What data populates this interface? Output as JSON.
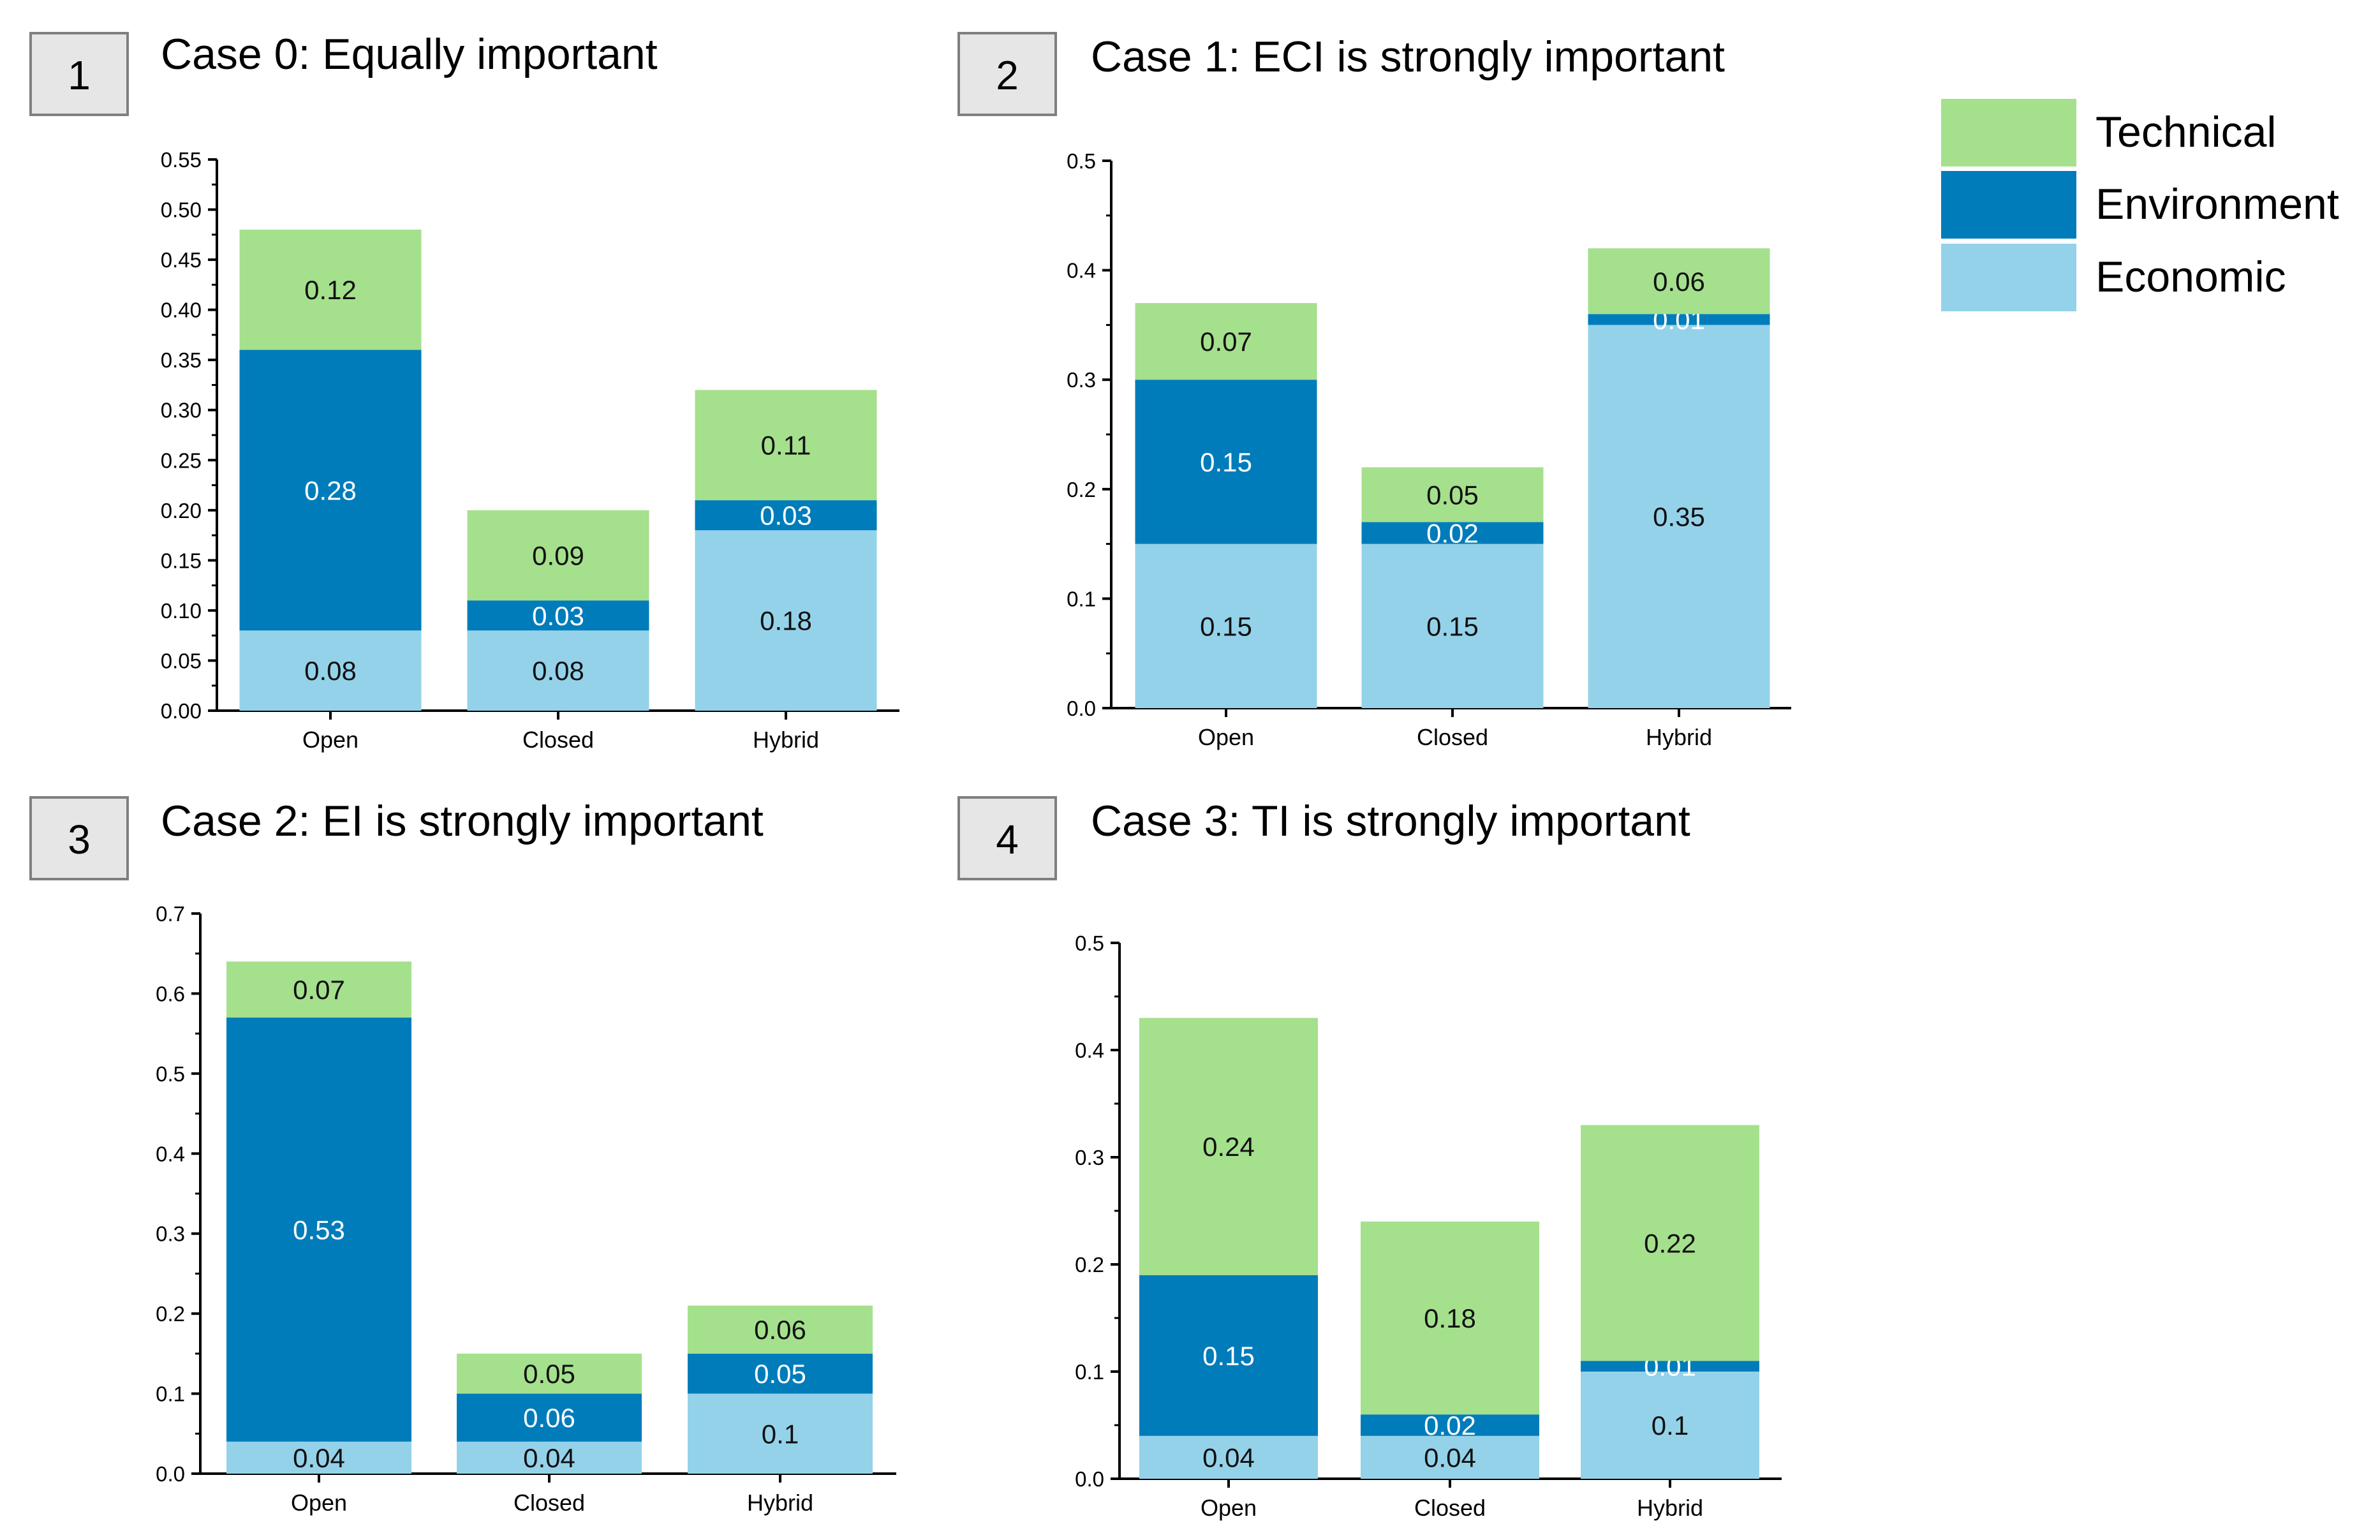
{
  "colors": {
    "technical": "#A5E08D",
    "environment": "#007CBA",
    "economic": "#94D2EA",
    "axis": "#000000",
    "label_dark": "#111111",
    "label_light": "#ffffff",
    "box_fill": "#E6E6E6",
    "box_stroke": "#7F7F7F"
  },
  "legend": {
    "items": [
      {
        "key": "technical",
        "label": "Technical"
      },
      {
        "key": "environment",
        "label": "Environment"
      },
      {
        "key": "economic",
        "label": "Economic"
      }
    ]
  },
  "chart_data": [
    {
      "panel_number": "1",
      "title": "Case 0: Equally important",
      "type": "bar",
      "stacked": true,
      "categories": [
        "Open",
        "Closed",
        "Hybrid"
      ],
      "series": [
        {
          "name": "Economic",
          "key": "economic",
          "values": [
            0.08,
            0.08,
            0.18
          ],
          "labels": [
            "0.08",
            "0.08",
            "0.18"
          ]
        },
        {
          "name": "Environment",
          "key": "environment",
          "values": [
            0.28,
            0.03,
            0.03
          ],
          "labels": [
            "0.28",
            "0.03",
            "0.03"
          ]
        },
        {
          "name": "Technical",
          "key": "technical",
          "values": [
            0.12,
            0.09,
            0.11
          ],
          "labels": [
            "0.12",
            "0.09",
            "0.11"
          ]
        }
      ],
      "ylim": [
        0,
        0.55
      ],
      "yticks": [
        "0.00",
        "0.05",
        "0.10",
        "0.15",
        "0.20",
        "0.25",
        "0.30",
        "0.35",
        "0.40",
        "0.45",
        "0.50",
        "0.55"
      ],
      "xlabel": "",
      "ylabel": ""
    },
    {
      "panel_number": "2",
      "title": "Case 1: ECI is strongly important",
      "type": "bar",
      "stacked": true,
      "categories": [
        "Open",
        "Closed",
        "Hybrid"
      ],
      "series": [
        {
          "name": "Economic",
          "key": "economic",
          "values": [
            0.15,
            0.15,
            0.35
          ],
          "labels": [
            "0.15",
            "0.15",
            "0.35"
          ]
        },
        {
          "name": "Environment",
          "key": "environment",
          "values": [
            0.15,
            0.02,
            0.01
          ],
          "labels": [
            "0.15",
            "0.02",
            "0.01"
          ]
        },
        {
          "name": "Technical",
          "key": "technical",
          "values": [
            0.07,
            0.05,
            0.06
          ],
          "labels": [
            "0.07",
            "0.05",
            "0.06"
          ]
        }
      ],
      "ylim": [
        0,
        0.5
      ],
      "yticks": [
        "0.0",
        "0.1",
        "0.2",
        "0.3",
        "0.4",
        "0.5"
      ],
      "xlabel": "",
      "ylabel": ""
    },
    {
      "panel_number": "3",
      "title": "Case 2: EI is strongly important",
      "type": "bar",
      "stacked": true,
      "categories": [
        "Open",
        "Closed",
        "Hybrid"
      ],
      "series": [
        {
          "name": "Economic",
          "key": "economic",
          "values": [
            0.04,
            0.04,
            0.1
          ],
          "labels": [
            "0.04",
            "0.04",
            "0.1"
          ]
        },
        {
          "name": "Environment",
          "key": "environment",
          "values": [
            0.53,
            0.06,
            0.05
          ],
          "labels": [
            "0.53",
            "0.06",
            "0.05"
          ]
        },
        {
          "name": "Technical",
          "key": "technical",
          "values": [
            0.07,
            0.05,
            0.06
          ],
          "labels": [
            "0.07",
            "0.05",
            "0.06"
          ]
        }
      ],
      "ylim": [
        0,
        0.7
      ],
      "yticks": [
        "0.0",
        "0.1",
        "0.2",
        "0.3",
        "0.4",
        "0.5",
        "0.6",
        "0.7"
      ],
      "xlabel": "",
      "ylabel": ""
    },
    {
      "panel_number": "4",
      "title": "Case 3: TI is strongly important",
      "type": "bar",
      "stacked": true,
      "categories": [
        "Open",
        "Closed",
        "Hybrid"
      ],
      "series": [
        {
          "name": "Economic",
          "key": "economic",
          "values": [
            0.04,
            0.04,
            0.1
          ],
          "labels": [
            "0.04",
            "0.04",
            "0.1"
          ]
        },
        {
          "name": "Environment",
          "key": "environment",
          "values": [
            0.15,
            0.02,
            0.01
          ],
          "labels": [
            "0.15",
            "0.02",
            "0.01"
          ]
        },
        {
          "name": "Technical",
          "key": "technical",
          "values": [
            0.24,
            0.18,
            0.22
          ],
          "labels": [
            "0.24",
            "0.18",
            "0.22"
          ]
        }
      ],
      "ylim": [
        0,
        0.5
      ],
      "yticks": [
        "0.0",
        "0.1",
        "0.2",
        "0.3",
        "0.4",
        "0.5"
      ],
      "xlabel": "",
      "ylabel": ""
    }
  ]
}
